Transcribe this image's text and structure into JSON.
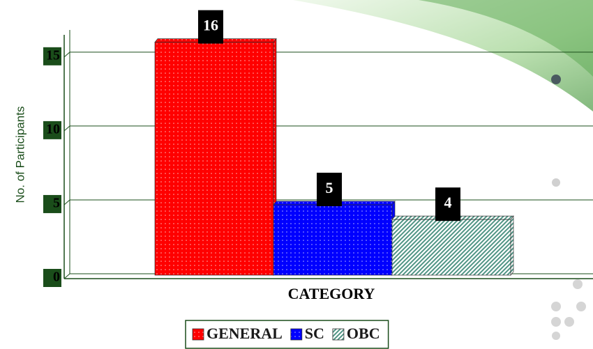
{
  "chart_data": {
    "type": "bar",
    "x_label": "CATEGORY",
    "y_label": "No. of Participants",
    "series": [
      {
        "name": "GENERAL",
        "color": "#ff0000",
        "pattern": "dots",
        "values": [
          16
        ]
      },
      {
        "name": "SC",
        "color": "#0000ff",
        "pattern": "dots",
        "values": [
          5
        ]
      },
      {
        "name": "OBC",
        "color": "#4f9484",
        "pattern": "hatch",
        "values": [
          4
        ]
      }
    ],
    "ylim": [
      0,
      16.5
    ],
    "yticks": [
      0,
      5,
      10,
      15
    ],
    "grid": true,
    "legend": "bottom"
  }
}
